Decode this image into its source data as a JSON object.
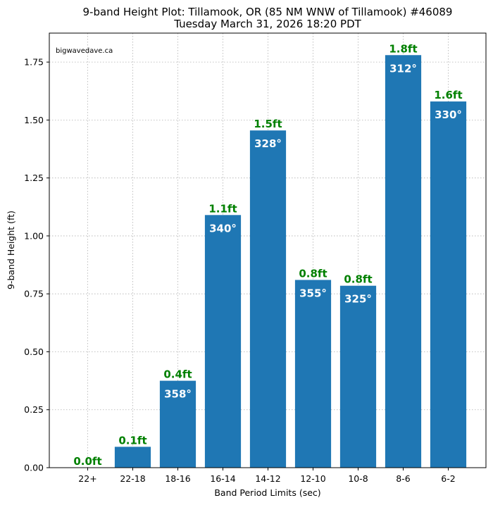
{
  "chart_data": {
    "type": "bar",
    "title_line1": "9-band Height Plot: Tillamook, OR (85 NM WNW of Tillamook) #46089",
    "title_line2": "Tuesday March 31, 2026 18:20 PDT",
    "xlabel": "Band Period Limits (sec)",
    "ylabel": "9-band Height (ft)",
    "watermark": "bigwavedave.ca",
    "categories": [
      "22+",
      "22-18",
      "18-16",
      "16-14",
      "14-12",
      "12-10",
      "10-8",
      "8-6",
      "6-2"
    ],
    "values": [
      0.0,
      0.09,
      0.375,
      1.09,
      1.455,
      0.81,
      0.785,
      1.78,
      1.58
    ],
    "height_labels": [
      "0.0ft",
      "0.1ft",
      "0.4ft",
      "1.1ft",
      "1.5ft",
      "0.8ft",
      "0.8ft",
      "1.8ft",
      "1.6ft"
    ],
    "direction_labels": [
      "",
      "",
      "358°",
      "340°",
      "328°",
      "355°",
      "325°",
      "312°",
      "330°"
    ],
    "yticks": [
      "0.00",
      "0.25",
      "0.50",
      "0.75",
      "1.00",
      "1.25",
      "1.50",
      "1.75"
    ],
    "ytick_values": [
      0,
      0.25,
      0.5,
      0.75,
      1.0,
      1.25,
      1.5,
      1.75
    ],
    "ylim": [
      0,
      1.875
    ],
    "grid": true,
    "bar_color": "#1f77b4",
    "height_label_color": "#008000",
    "direction_label_color": "#ffffff"
  }
}
